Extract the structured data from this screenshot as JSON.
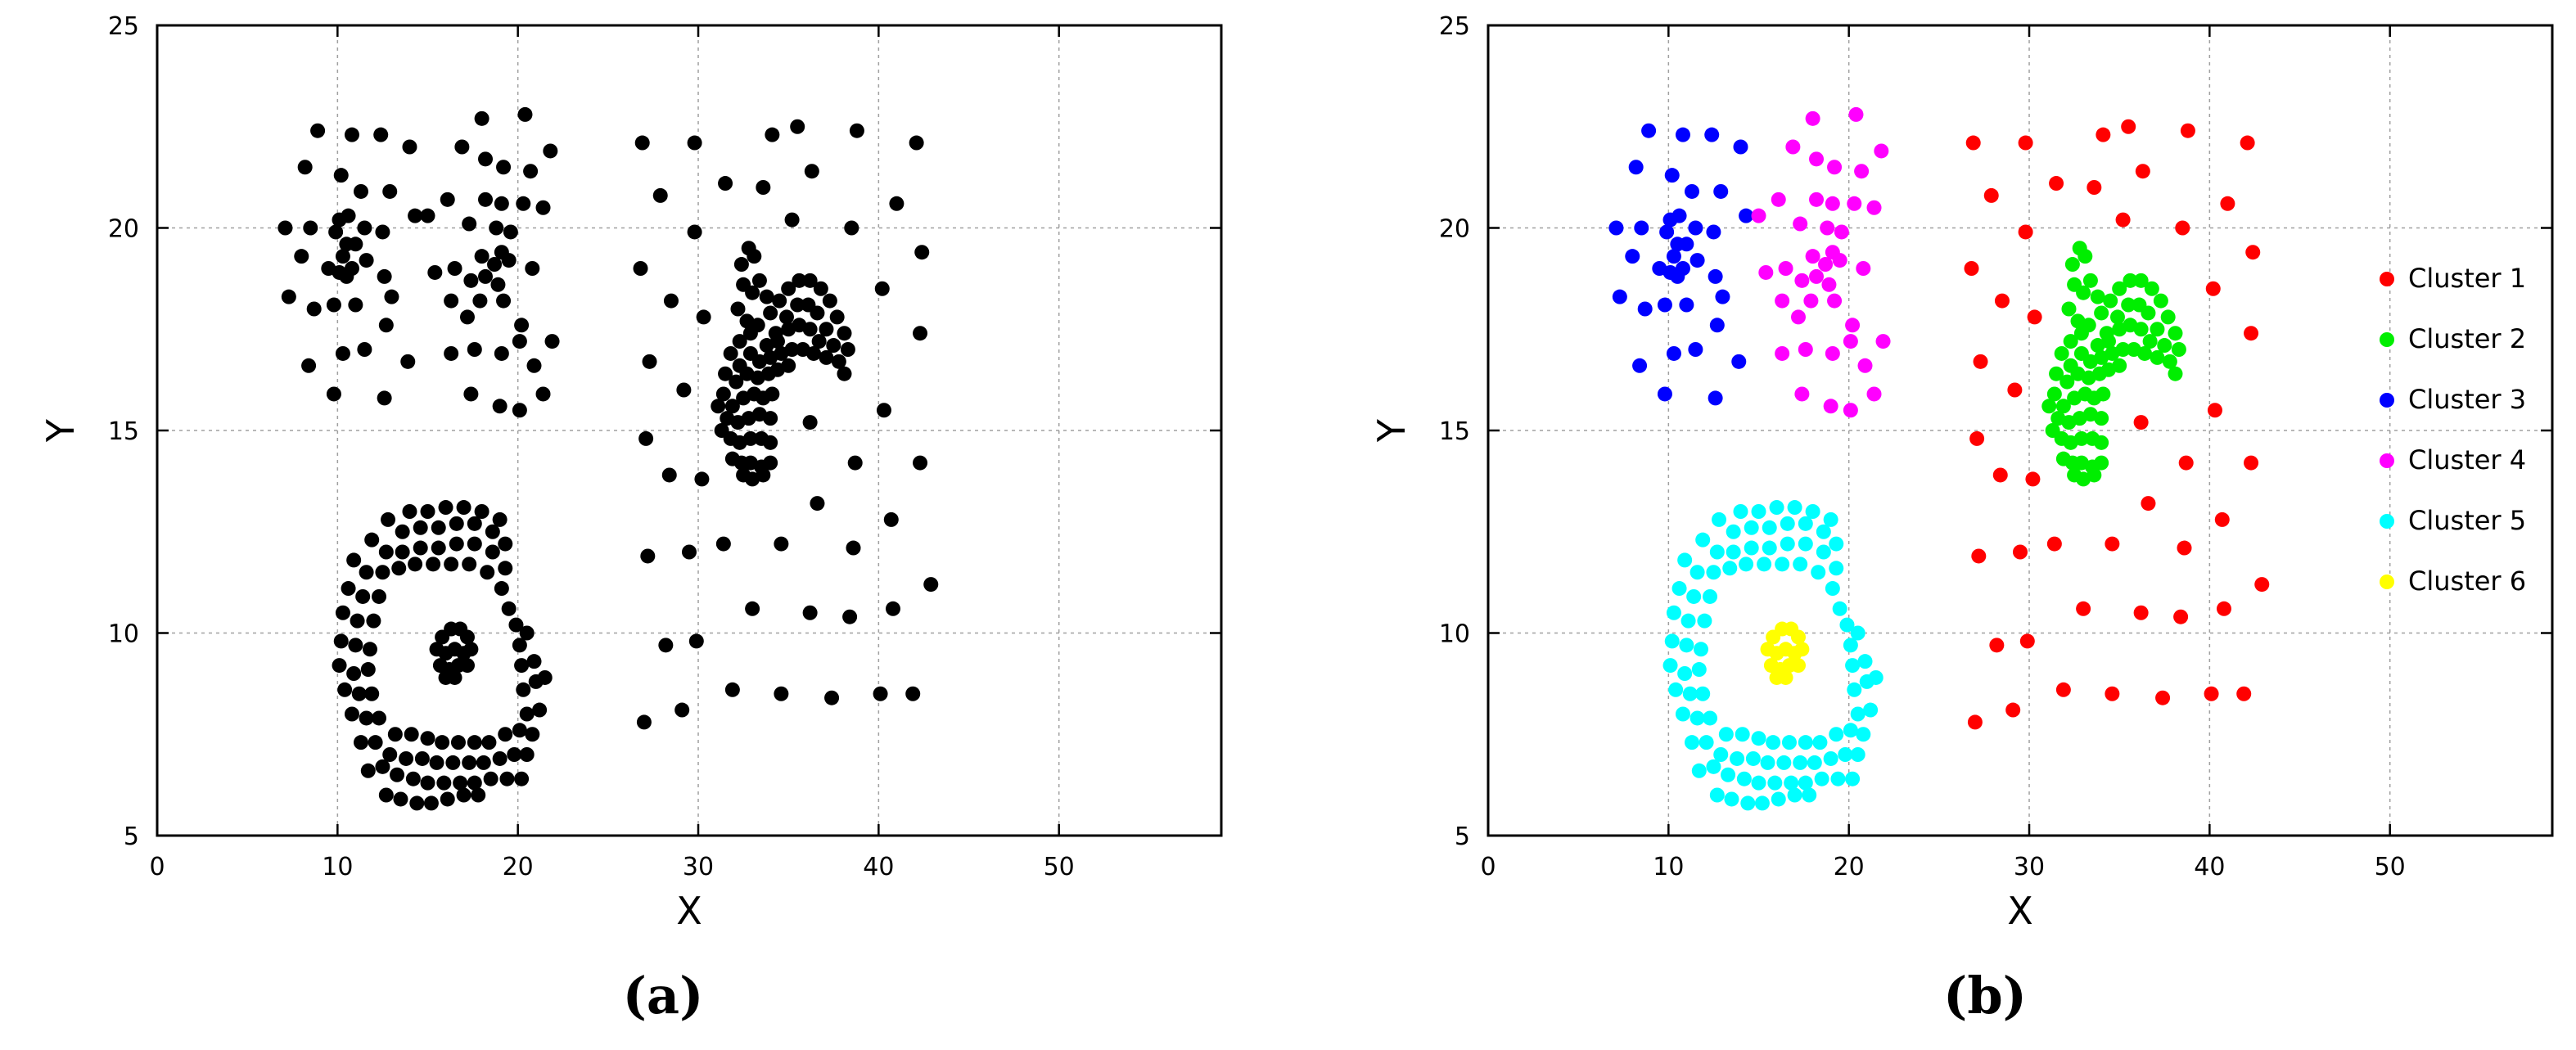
{
  "chart_data": [
    {
      "type": "scatter",
      "panel_label": "(a)",
      "xlabel": "X",
      "ylabel": "Y",
      "xlim": [
        0,
        59
      ],
      "ylim": [
        5,
        25
      ],
      "xticks": [
        0,
        10,
        20,
        30,
        40,
        50
      ],
      "yticks": [
        5,
        10,
        15,
        20,
        25
      ],
      "grid": true,
      "legend": "none",
      "series": [
        {
          "color": "#000000",
          "group": "all"
        }
      ]
    },
    {
      "type": "scatter",
      "panel_label": "(b)",
      "xlabel": "X",
      "ylabel": "Y",
      "xlim": [
        0,
        59
      ],
      "ylim": [
        5,
        25
      ],
      "xticks": [
        0,
        10,
        20,
        30,
        40,
        50
      ],
      "yticks": [
        5,
        10,
        15,
        20,
        25
      ],
      "grid": true,
      "legend": "right",
      "series": [
        {
          "name": "Cluster  1",
          "color": "#ff0000",
          "group": "c1"
        },
        {
          "name": "Cluster  2",
          "color": "#00ee00",
          "group": "c2"
        },
        {
          "name": "Cluster  3",
          "color": "#0000ff",
          "group": "c3"
        },
        {
          "name": "Cluster  4",
          "color": "#ff00ff",
          "group": "c4"
        },
        {
          "name": "Cluster  5",
          "color": "#00ffff",
          "group": "c5"
        },
        {
          "name": "Cluster  6",
          "color": "#ffff00",
          "group": "c6"
        }
      ]
    }
  ],
  "points": {
    "c1": [
      [
        26.9,
        22.1
      ],
      [
        29.8,
        22.1
      ],
      [
        31.5,
        21.1
      ],
      [
        34.1,
        22.3
      ],
      [
        35.5,
        22.5
      ],
      [
        38.8,
        22.4
      ],
      [
        42.1,
        22.1
      ],
      [
        36.3,
        21.4
      ],
      [
        33.6,
        21.0
      ],
      [
        27.9,
        20.8
      ],
      [
        41.0,
        20.6
      ],
      [
        29.8,
        19.9
      ],
      [
        38.5,
        20.0
      ],
      [
        35.2,
        20.2
      ],
      [
        42.4,
        19.4
      ],
      [
        26.8,
        19.0
      ],
      [
        28.5,
        18.2
      ],
      [
        40.2,
        18.5
      ],
      [
        30.3,
        17.8
      ],
      [
        42.3,
        17.4
      ],
      [
        27.3,
        16.7
      ],
      [
        29.2,
        16.0
      ],
      [
        40.3,
        15.5
      ],
      [
        36.2,
        15.2
      ],
      [
        27.1,
        14.8
      ],
      [
        28.4,
        13.9
      ],
      [
        30.2,
        13.8
      ],
      [
        38.7,
        14.2
      ],
      [
        42.3,
        14.2
      ],
      [
        36.6,
        13.2
      ],
      [
        40.7,
        12.8
      ],
      [
        27.2,
        11.9
      ],
      [
        29.5,
        12.0
      ],
      [
        31.4,
        12.2
      ],
      [
        34.6,
        12.2
      ],
      [
        38.6,
        12.1
      ],
      [
        42.9,
        11.2
      ],
      [
        33.0,
        10.6
      ],
      [
        36.2,
        10.5
      ],
      [
        38.4,
        10.4
      ],
      [
        40.8,
        10.6
      ],
      [
        28.2,
        9.7
      ],
      [
        29.9,
        9.8
      ],
      [
        31.9,
        8.6
      ],
      [
        34.6,
        8.5
      ],
      [
        37.4,
        8.4
      ],
      [
        40.1,
        8.5
      ],
      [
        41.9,
        8.5
      ],
      [
        27.0,
        7.8
      ],
      [
        29.1,
        8.1
      ]
    ],
    "c2": [
      [
        32.4,
        19.1
      ],
      [
        32.8,
        19.5
      ],
      [
        33.1,
        19.3
      ],
      [
        32.5,
        18.6
      ],
      [
        33.0,
        18.4
      ],
      [
        33.4,
        18.7
      ],
      [
        33.8,
        18.3
      ],
      [
        32.2,
        18.0
      ],
      [
        32.7,
        17.7
      ],
      [
        33.3,
        17.6
      ],
      [
        34.0,
        17.9
      ],
      [
        34.5,
        18.2
      ],
      [
        35.0,
        18.5
      ],
      [
        35.6,
        18.7
      ],
      [
        36.2,
        18.7
      ],
      [
        36.8,
        18.5
      ],
      [
        37.3,
        18.2
      ],
      [
        37.7,
        17.8
      ],
      [
        38.1,
        17.4
      ],
      [
        38.3,
        17.0
      ],
      [
        34.3,
        17.4
      ],
      [
        34.9,
        17.8
      ],
      [
        35.5,
        18.1
      ],
      [
        36.1,
        18.1
      ],
      [
        36.6,
        17.9
      ],
      [
        37.1,
        17.5
      ],
      [
        37.5,
        17.1
      ],
      [
        37.8,
        16.7
      ],
      [
        38.1,
        16.4
      ],
      [
        33.8,
        17.1
      ],
      [
        34.4,
        17.2
      ],
      [
        35.0,
        17.5
      ],
      [
        35.6,
        17.6
      ],
      [
        36.2,
        17.5
      ],
      [
        36.7,
        17.2
      ],
      [
        37.1,
        16.8
      ],
      [
        31.8,
        16.9
      ],
      [
        32.3,
        16.6
      ],
      [
        32.9,
        16.9
      ],
      [
        33.4,
        16.7
      ],
      [
        34.0,
        16.8
      ],
      [
        34.6,
        16.9
      ],
      [
        35.2,
        17.0
      ],
      [
        35.8,
        17.0
      ],
      [
        36.4,
        16.9
      ],
      [
        31.5,
        16.4
      ],
      [
        32.1,
        16.2
      ],
      [
        32.7,
        16.4
      ],
      [
        33.3,
        16.3
      ],
      [
        33.9,
        16.4
      ],
      [
        34.4,
        16.5
      ],
      [
        35.0,
        16.6
      ],
      [
        31.4,
        15.9
      ],
      [
        31.9,
        15.6
      ],
      [
        32.5,
        15.8
      ],
      [
        33.1,
        15.9
      ],
      [
        33.6,
        15.8
      ],
      [
        34.1,
        15.9
      ],
      [
        31.1,
        15.6
      ],
      [
        31.6,
        15.3
      ],
      [
        32.2,
        15.2
      ],
      [
        32.8,
        15.3
      ],
      [
        33.4,
        15.4
      ],
      [
        34.0,
        15.3
      ],
      [
        31.3,
        15.0
      ],
      [
        31.8,
        14.8
      ],
      [
        32.3,
        14.7
      ],
      [
        32.9,
        14.8
      ],
      [
        33.5,
        14.8
      ],
      [
        34.0,
        14.7
      ],
      [
        31.9,
        14.3
      ],
      [
        32.4,
        14.2
      ],
      [
        32.9,
        14.2
      ],
      [
        33.5,
        14.1
      ],
      [
        34.0,
        14.2
      ],
      [
        32.5,
        13.9
      ],
      [
        33.0,
        13.8
      ],
      [
        33.6,
        13.9
      ],
      [
        32.3,
        17.2
      ],
      [
        32.9,
        17.4
      ]
    ],
    "c3": [
      [
        8.9,
        22.4
      ],
      [
        10.8,
        22.3
      ],
      [
        12.4,
        22.3
      ],
      [
        14.0,
        22.0
      ],
      [
        8.2,
        21.5
      ],
      [
        10.2,
        21.3
      ],
      [
        11.3,
        20.9
      ],
      [
        12.9,
        20.9
      ],
      [
        10.1,
        20.2
      ],
      [
        10.6,
        20.3
      ],
      [
        14.3,
        20.3
      ],
      [
        7.1,
        20.0
      ],
      [
        8.5,
        20.0
      ],
      [
        9.9,
        19.9
      ],
      [
        11.5,
        20.0
      ],
      [
        12.5,
        19.9
      ],
      [
        10.5,
        19.6
      ],
      [
        11.0,
        19.6
      ],
      [
        8.0,
        19.3
      ],
      [
        10.3,
        19.3
      ],
      [
        11.6,
        19.2
      ],
      [
        9.5,
        19.0
      ],
      [
        10.8,
        19.0
      ],
      [
        10.1,
        18.9
      ],
      [
        10.5,
        18.8
      ],
      [
        12.6,
        18.8
      ],
      [
        7.3,
        18.3
      ],
      [
        9.8,
        18.1
      ],
      [
        11.0,
        18.1
      ],
      [
        8.7,
        18.0
      ],
      [
        13.0,
        18.3
      ],
      [
        12.7,
        17.6
      ],
      [
        8.4,
        16.6
      ],
      [
        10.3,
        16.9
      ],
      [
        11.5,
        17.0
      ],
      [
        13.9,
        16.7
      ],
      [
        9.8,
        15.9
      ],
      [
        12.6,
        15.8
      ]
    ],
    "c4": [
      [
        18.0,
        22.7
      ],
      [
        20.4,
        22.8
      ],
      [
        16.9,
        22.0
      ],
      [
        19.2,
        21.5
      ],
      [
        20.7,
        21.4
      ],
      [
        18.2,
        21.7
      ],
      [
        21.8,
        21.9
      ],
      [
        16.1,
        20.7
      ],
      [
        18.2,
        20.7
      ],
      [
        19.1,
        20.6
      ],
      [
        20.3,
        20.6
      ],
      [
        15.0,
        20.3
      ],
      [
        17.3,
        20.1
      ],
      [
        18.8,
        20.0
      ],
      [
        19.6,
        19.9
      ],
      [
        21.4,
        20.5
      ],
      [
        18.0,
        19.3
      ],
      [
        19.1,
        19.4
      ],
      [
        18.7,
        19.1
      ],
      [
        19.5,
        19.2
      ],
      [
        15.4,
        18.9
      ],
      [
        16.5,
        19.0
      ],
      [
        17.4,
        18.7
      ],
      [
        18.2,
        18.8
      ],
      [
        18.9,
        18.6
      ],
      [
        20.8,
        19.0
      ],
      [
        16.3,
        18.2
      ],
      [
        17.9,
        18.2
      ],
      [
        19.2,
        18.2
      ],
      [
        17.2,
        17.8
      ],
      [
        20.2,
        17.6
      ],
      [
        17.6,
        17.0
      ],
      [
        19.1,
        16.9
      ],
      [
        20.1,
        17.2
      ],
      [
        21.9,
        17.2
      ],
      [
        16.3,
        16.9
      ],
      [
        20.9,
        16.6
      ],
      [
        17.4,
        15.9
      ],
      [
        19.0,
        15.6
      ],
      [
        20.1,
        15.5
      ],
      [
        21.4,
        15.9
      ]
    ],
    "c5": [
      [
        14.0,
        13.0
      ],
      [
        15.0,
        13.0
      ],
      [
        16.0,
        13.1
      ],
      [
        17.0,
        13.1
      ],
      [
        18.0,
        13.0
      ],
      [
        19.0,
        12.8
      ],
      [
        12.8,
        12.8
      ],
      [
        13.6,
        12.5
      ],
      [
        14.6,
        12.6
      ],
      [
        15.6,
        12.6
      ],
      [
        16.6,
        12.7
      ],
      [
        17.6,
        12.7
      ],
      [
        18.6,
        12.5
      ],
      [
        19.3,
        12.2
      ],
      [
        11.9,
        12.3
      ],
      [
        12.7,
        12.0
      ],
      [
        13.6,
        12.0
      ],
      [
        14.6,
        12.1
      ],
      [
        15.6,
        12.1
      ],
      [
        16.6,
        12.2
      ],
      [
        17.6,
        12.2
      ],
      [
        18.6,
        12.0
      ],
      [
        19.3,
        11.6
      ],
      [
        10.9,
        11.8
      ],
      [
        11.6,
        11.5
      ],
      [
        12.5,
        11.5
      ],
      [
        13.4,
        11.6
      ],
      [
        14.3,
        11.7
      ],
      [
        15.3,
        11.7
      ],
      [
        16.3,
        11.7
      ],
      [
        17.3,
        11.7
      ],
      [
        18.3,
        11.5
      ],
      [
        19.1,
        11.1
      ],
      [
        10.6,
        11.1
      ],
      [
        11.4,
        10.9
      ],
      [
        12.3,
        10.9
      ],
      [
        19.5,
        10.6
      ],
      [
        19.9,
        10.2
      ],
      [
        10.3,
        10.5
      ],
      [
        11.1,
        10.3
      ],
      [
        12.0,
        10.3
      ],
      [
        20.1,
        9.7
      ],
      [
        20.5,
        10.0
      ],
      [
        10.2,
        9.8
      ],
      [
        11.0,
        9.7
      ],
      [
        11.8,
        9.6
      ],
      [
        20.2,
        9.2
      ],
      [
        20.9,
        9.3
      ],
      [
        10.1,
        9.2
      ],
      [
        10.9,
        9.0
      ],
      [
        11.7,
        9.1
      ],
      [
        20.3,
        8.6
      ],
      [
        21.0,
        8.8
      ],
      [
        21.5,
        8.9
      ],
      [
        10.4,
        8.6
      ],
      [
        11.2,
        8.5
      ],
      [
        11.9,
        8.5
      ],
      [
        20.5,
        8.0
      ],
      [
        21.2,
        8.1
      ],
      [
        10.8,
        8.0
      ],
      [
        11.6,
        7.9
      ],
      [
        12.3,
        7.9
      ],
      [
        13.2,
        7.5
      ],
      [
        14.1,
        7.5
      ],
      [
        15.0,
        7.4
      ],
      [
        15.8,
        7.3
      ],
      [
        16.7,
        7.3
      ],
      [
        17.6,
        7.3
      ],
      [
        18.4,
        7.3
      ],
      [
        19.3,
        7.5
      ],
      [
        20.1,
        7.6
      ],
      [
        20.8,
        7.5
      ],
      [
        11.3,
        7.3
      ],
      [
        12.1,
        7.3
      ],
      [
        12.9,
        7.0
      ],
      [
        13.8,
        6.9
      ],
      [
        14.7,
        6.9
      ],
      [
        15.5,
        6.8
      ],
      [
        16.4,
        6.8
      ],
      [
        17.3,
        6.8
      ],
      [
        18.1,
        6.8
      ],
      [
        19.0,
        6.9
      ],
      [
        19.8,
        7.0
      ],
      [
        20.5,
        7.0
      ],
      [
        11.7,
        6.6
      ],
      [
        12.5,
        6.7
      ],
      [
        13.3,
        6.5
      ],
      [
        14.2,
        6.4
      ],
      [
        15.0,
        6.3
      ],
      [
        15.9,
        6.3
      ],
      [
        16.8,
        6.3
      ],
      [
        17.6,
        6.3
      ],
      [
        18.5,
        6.4
      ],
      [
        19.4,
        6.4
      ],
      [
        20.2,
        6.4
      ],
      [
        12.7,
        6.0
      ],
      [
        13.5,
        5.9
      ],
      [
        14.4,
        5.8
      ],
      [
        15.2,
        5.8
      ],
      [
        16.1,
        5.9
      ],
      [
        17.0,
        6.0
      ],
      [
        17.8,
        6.0
      ]
    ],
    "c6": [
      [
        15.8,
        9.9
      ],
      [
        16.3,
        10.1
      ],
      [
        16.8,
        10.1
      ],
      [
        17.2,
        9.9
      ],
      [
        15.5,
        9.6
      ],
      [
        16.0,
        9.5
      ],
      [
        16.5,
        9.6
      ],
      [
        17.0,
        9.5
      ],
      [
        17.4,
        9.6
      ],
      [
        15.7,
        9.2
      ],
      [
        16.2,
        9.1
      ],
      [
        16.7,
        9.2
      ],
      [
        17.2,
        9.2
      ],
      [
        16.0,
        8.9
      ],
      [
        16.5,
        8.9
      ]
    ]
  }
}
